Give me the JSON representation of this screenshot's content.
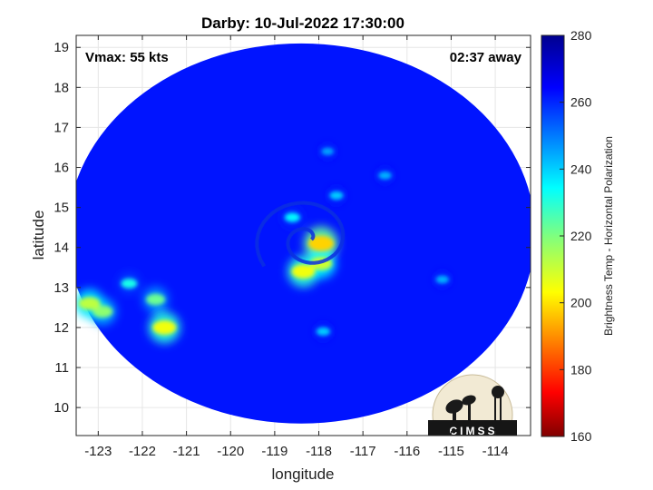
{
  "chart_data": {
    "type": "heatmap",
    "title": "Darby: 10-Jul-2022 17:30:00",
    "xlabel": "longitude",
    "ylabel": "latitude",
    "xlim": [
      -123.5,
      -113.2
    ],
    "ylim": [
      9.3,
      19.3
    ],
    "xticks": [
      -123,
      -122,
      -121,
      -120,
      -119,
      -118,
      -117,
      -116,
      -115,
      -114
    ],
    "yticks": [
      10,
      11,
      12,
      13,
      14,
      15,
      16,
      17,
      18,
      19
    ],
    "grid": true,
    "annotations": {
      "vmax": "Vmax: 55 kts",
      "time_away": "02:37 away"
    },
    "colorbar": {
      "label": "Brightness Temp - Horizontal Polarization",
      "range": [
        160,
        280
      ],
      "ticks": [
        160,
        180,
        200,
        220,
        240,
        260,
        280
      ],
      "colormap": "jet"
    },
    "swath": {
      "center_lon": -118.4,
      "center_lat": 14.35,
      "radius_lon": 5.3,
      "radius_lat": 4.75,
      "background_value": 262
    },
    "storm_center": {
      "lon": -118.25,
      "lat": 14.2
    },
    "features": [
      {
        "lon": -118.35,
        "lat": 13.4,
        "value": 205
      },
      {
        "lon": -117.95,
        "lat": 14.1,
        "value": 198
      },
      {
        "lon": -117.95,
        "lat": 13.6,
        "value": 210
      },
      {
        "lon": -118.6,
        "lat": 14.75,
        "value": 235
      },
      {
        "lon": -117.6,
        "lat": 15.3,
        "value": 240
      },
      {
        "lon": -117.8,
        "lat": 16.4,
        "value": 245
      },
      {
        "lon": -116.5,
        "lat": 15.8,
        "value": 243
      },
      {
        "lon": -121.5,
        "lat": 12.0,
        "value": 205
      },
      {
        "lon": -122.9,
        "lat": 12.4,
        "value": 218
      },
      {
        "lon": -123.2,
        "lat": 12.6,
        "value": 212
      },
      {
        "lon": -121.7,
        "lat": 12.7,
        "value": 222
      },
      {
        "lon": -122.3,
        "lat": 13.1,
        "value": 232
      },
      {
        "lon": -117.9,
        "lat": 11.9,
        "value": 240
      },
      {
        "lon": -115.2,
        "lat": 13.2,
        "value": 243
      }
    ],
    "logo_text": "CIMSS"
  }
}
